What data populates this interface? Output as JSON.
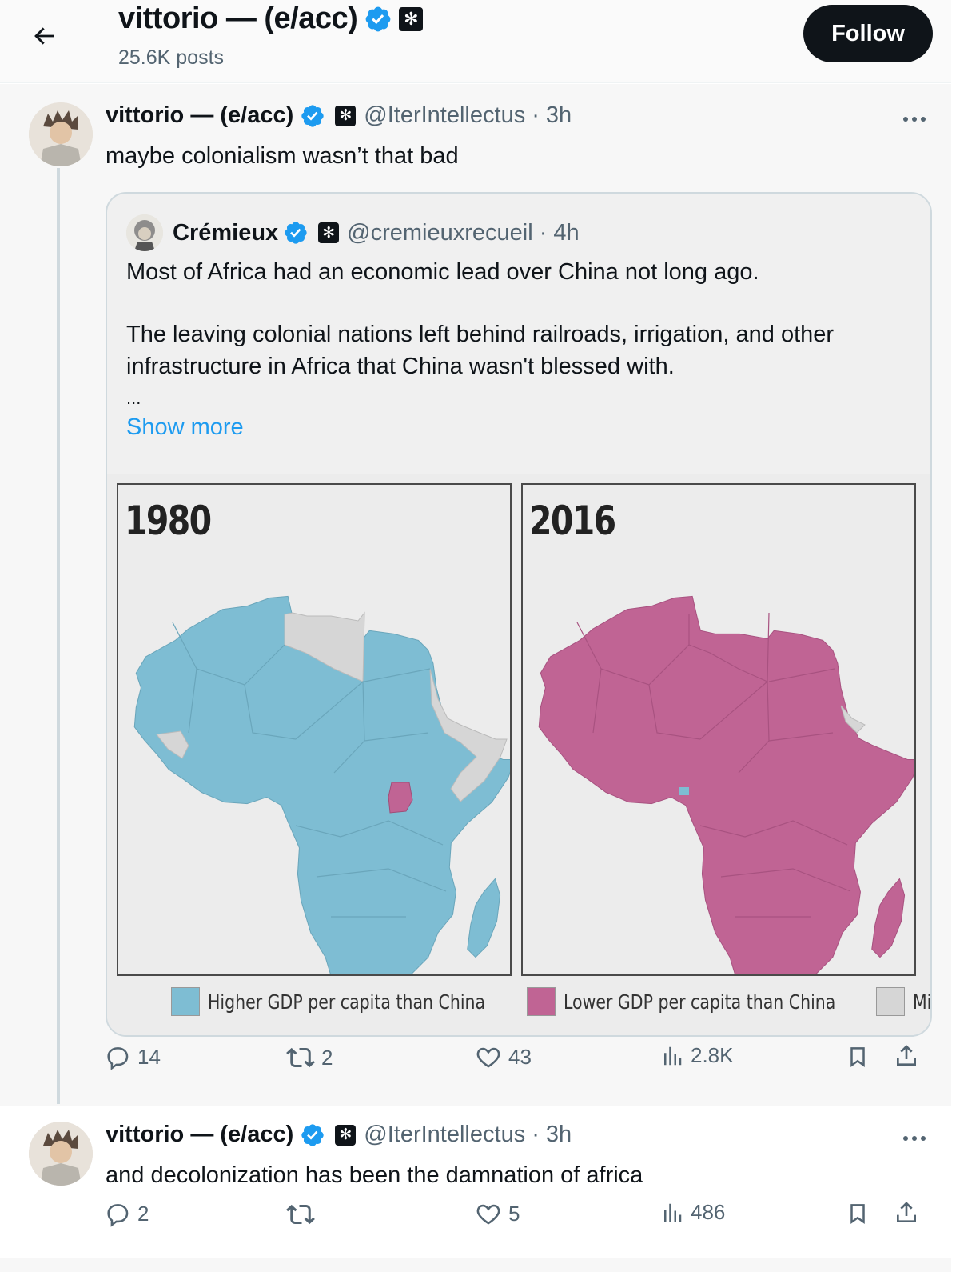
{
  "header": {
    "title": "vittorio — (e/acc)",
    "posts": "25.6K posts",
    "follow_label": "Follow"
  },
  "colors": {
    "verified": "#1d9bf0",
    "higher": "#7ebdd3",
    "lower": "#c06494",
    "missing": "#d6d6d6"
  },
  "tweets": [
    {
      "name": "vittorio — (e/acc)",
      "handle": "@IterIntellectus",
      "time": "· 3h",
      "text": "maybe colonialism wasn’t that bad",
      "quote": {
        "name": "Crémieux",
        "handle": "@cremieuxrecueil",
        "time": "· 4h",
        "lines": [
          "Most of Africa had an economic lead over China not long ago.",
          "The leaving colonial nations left behind railroads, irrigation, and other",
          "infrastructure in Africa that China wasn't blessed with.",
          "..."
        ],
        "show_more": "Show more",
        "maps": {
          "left_year": "1980",
          "right_year": "2016",
          "legend": [
            "Higher GDP per capita than China",
            "Lower GDP per capita than China",
            "Missing data"
          ]
        }
      },
      "stats": {
        "replies": "14",
        "reposts": "2",
        "likes": "43",
        "views": "2.8K"
      }
    },
    {
      "name": "vittorio — (e/acc)",
      "handle": "@IterIntellectus",
      "time": "· 3h",
      "text": "and decolonization has been the damnation of africa",
      "stats": {
        "replies": "2",
        "reposts": "",
        "likes": "5",
        "views": "486"
      }
    }
  ]
}
